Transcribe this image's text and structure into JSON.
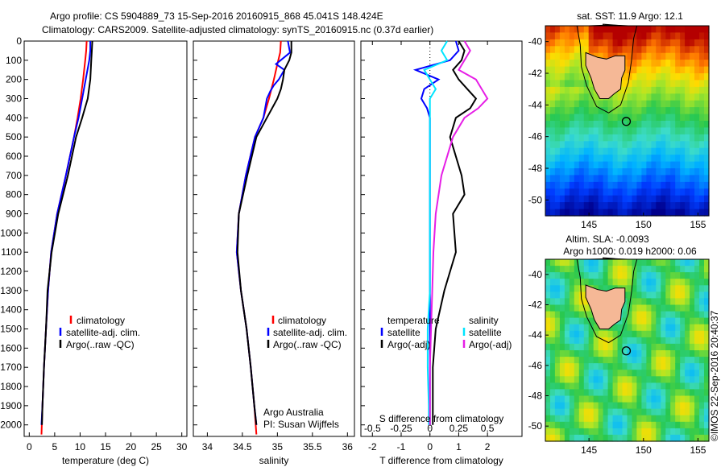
{
  "header": {
    "line1": "Argo profile: CS 5904889_73 15-Sep-2016 20160915_868 45.041S 148.424E",
    "line2": "Climatology: CARS2009. Satellite-adjusted climatology: synTS_20160915.nc (0.37d earlier)"
  },
  "colors": {
    "climatology": "#ff0000",
    "satellite": "#0000ff",
    "argo": "#000000",
    "sat_salinity": "#00e5ff",
    "argo_salinity": "#e61ee6"
  },
  "chart_data": [
    {
      "id": "temperature",
      "type": "line",
      "xlabel": "temperature (deg C)",
      "ylabel": "",
      "xlim": [
        -1,
        31
      ],
      "ylim": [
        2060,
        0
      ],
      "xticks": [
        0,
        5,
        10,
        15,
        20,
        25,
        30
      ],
      "yticks": [
        0,
        100,
        200,
        300,
        400,
        500,
        600,
        700,
        800,
        900,
        1000,
        1100,
        1200,
        1300,
        1400,
        1500,
        1600,
        1700,
        1800,
        1900,
        2000
      ],
      "legend": [
        "climatology",
        "satellite-adj. clim.",
        "Argo(..raw -QC)"
      ],
      "series": [
        {
          "name": "climatology",
          "depth": [
            0,
            50,
            100,
            200,
            300,
            400,
            500,
            700,
            900,
            1100,
            1300,
            1500,
            1700,
            1900,
            2050
          ],
          "values": [
            11.3,
            11.2,
            11.0,
            10.6,
            10.1,
            9.5,
            8.8,
            7.2,
            5.5,
            4.3,
            3.7,
            3.3,
            2.9,
            2.6,
            2.4
          ]
        },
        {
          "name": "satellite-adj. clim.",
          "depth": [
            0,
            50,
            100,
            200,
            300,
            400,
            500,
            700,
            900,
            1100,
            1300,
            1500,
            1700,
            1900,
            2000
          ],
          "values": [
            12.0,
            12.0,
            11.8,
            11.1,
            10.4,
            9.7,
            8.8,
            7.2,
            5.5,
            4.3,
            3.7,
            3.3,
            2.9,
            2.6,
            2.4
          ]
        },
        {
          "name": "Argo(..raw -QC)",
          "depth": [
            0,
            50,
            100,
            200,
            300,
            400,
            500,
            700,
            900,
            1100,
            1300,
            1500,
            1700,
            1900,
            2000
          ],
          "values": [
            12.4,
            12.3,
            12.2,
            12.0,
            11.5,
            10.4,
            9.2,
            7.6,
            5.7,
            4.4,
            3.6,
            3.3,
            2.9,
            2.6,
            2.5
          ]
        }
      ]
    },
    {
      "id": "salinity",
      "type": "line",
      "xlabel": "salinity",
      "ylabel": "",
      "xlim": [
        33.8,
        36.1
      ],
      "ylim": [
        2060,
        0
      ],
      "xticks": [
        34,
        34.5,
        35,
        35.5,
        36
      ],
      "legend": [
        "climatology",
        "satellite-adj. clim.",
        "Argo(..raw -QC)"
      ],
      "series": [
        {
          "name": "climatology",
          "depth": [
            0,
            60,
            120,
            200,
            300,
            400,
            500,
            700,
            900,
            1100,
            1300,
            1500,
            1700,
            1900,
            2050
          ],
          "values": [
            35.05,
            35.04,
            35.0,
            34.95,
            34.88,
            34.8,
            34.68,
            34.55,
            34.45,
            34.42,
            34.48,
            34.56,
            34.62,
            34.67,
            34.7
          ]
        },
        {
          "name": "satellite-adj. clim.",
          "depth": [
            0,
            60,
            120,
            150,
            200,
            230,
            260,
            300,
            400,
            500,
            700,
            900,
            1100,
            1300,
            1500,
            1700,
            1900,
            2000
          ],
          "values": [
            35.15,
            35.18,
            34.98,
            35.1,
            35.02,
            34.95,
            34.9,
            34.85,
            34.8,
            34.68,
            34.55,
            34.45,
            34.42,
            34.48,
            34.56,
            34.62,
            34.67,
            34.7
          ]
        },
        {
          "name": "Argo(..raw -QC)",
          "depth": [
            0,
            60,
            100,
            150,
            200,
            250,
            300,
            400,
            500,
            700,
            900,
            1100,
            1300,
            1500,
            1700,
            1900,
            2000
          ],
          "values": [
            35.2,
            35.2,
            35.17,
            35.1,
            35.08,
            35.05,
            35.0,
            34.85,
            34.7,
            34.57,
            34.45,
            34.43,
            34.48,
            34.56,
            34.62,
            34.67,
            34.7
          ]
        }
      ]
    },
    {
      "id": "difference",
      "type": "line",
      "xlabel": "T difference from climatology",
      "xlabel_top": "S difference from climatology",
      "xlim": [
        -2.4,
        3.2
      ],
      "ylim": [
        2060,
        0
      ],
      "xticks": [
        -2,
        -1,
        0,
        1,
        2
      ],
      "xticks_top": [
        "-0.5",
        "-0.25",
        "0",
        "0.25",
        "0.5"
      ],
      "legend_titles": [
        "temperature",
        "salinity"
      ],
      "legend": [
        "satellite",
        "Argo(-adj)",
        "satellite",
        "Argo(-adj)"
      ],
      "series": [
        {
          "name": "temperature satellite",
          "depth": [
            0,
            50,
            100,
            150,
            200,
            250,
            300,
            350,
            400,
            500,
            700,
            900,
            1100,
            1300,
            1500,
            1700,
            1900,
            2000
          ],
          "values": [
            0.9,
            1.0,
            0.7,
            -0.5,
            0.3,
            -0.2,
            -0.3,
            -0.1,
            0.0,
            0.0,
            0.0,
            0.0,
            0.0,
            0.0,
            0.0,
            0.0,
            0.0,
            0.0
          ]
        },
        {
          "name": "temperature Argo(-adj)",
          "depth": [
            0,
            50,
            100,
            150,
            200,
            250,
            300,
            350,
            400,
            500,
            700,
            800,
            900,
            1100,
            1300,
            1500,
            1700,
            1900,
            2000
          ],
          "values": [
            1.0,
            1.2,
            1.1,
            0.8,
            1.0,
            1.3,
            1.6,
            1.4,
            0.9,
            0.7,
            1.1,
            1.2,
            0.8,
            0.9,
            0.5,
            0.2,
            0.1,
            0.1,
            0.1
          ]
        },
        {
          "name": "salinity satellite",
          "depth": [
            0,
            50,
            100,
            150,
            200,
            250,
            300,
            400,
            500,
            700,
            900,
            1100,
            1300,
            1500,
            1700,
            1900,
            2000
          ],
          "values": [
            0.15,
            0.1,
            0.15,
            -0.05,
            0.0,
            0.05,
            0.0,
            0.0,
            0.0,
            0.0,
            0.0,
            0.0,
            0.0,
            -0.02,
            -0.02,
            -0.01,
            -0.01
          ]
        },
        {
          "name": "salinity Argo(-adj)",
          "depth": [
            0,
            50,
            100,
            150,
            200,
            250,
            300,
            350,
            400,
            500,
            700,
            900,
            1100,
            1300,
            1500,
            1700,
            1900,
            2000
          ],
          "values": [
            0.3,
            0.35,
            0.3,
            0.25,
            0.4,
            0.45,
            0.5,
            0.42,
            0.3,
            0.2,
            0.1,
            0.05,
            0.03,
            0.02,
            0.01,
            0.0,
            0.0,
            0.0
          ]
        }
      ]
    },
    {
      "id": "sst_map",
      "type": "heatmap",
      "title": "sat. SST: 11.9 Argo: 12.1",
      "xticks": [
        145,
        150,
        155
      ],
      "yticks": [
        -40,
        -42,
        -44,
        -46,
        -48,
        -50
      ],
      "xlim": [
        141,
        156
      ],
      "ylim": [
        -51,
        -39
      ],
      "argo_position": [
        148.424,
        -45.041
      ]
    },
    {
      "id": "sla_map",
      "type": "heatmap",
      "title": "Altim. SLA: -0.0093",
      "subtitle": "Argo h1000: 0.019 h2000: 0.06",
      "xticks": [
        145,
        150,
        155
      ],
      "yticks": [
        -40,
        -42,
        -44,
        -46,
        -48,
        -50
      ],
      "xlim": [
        141,
        156
      ],
      "ylim": [
        -51,
        -39
      ],
      "argo_position": [
        148.424,
        -45.041
      ]
    }
  ],
  "credit": "©IMOS 22-Sep-2016 20:40:37",
  "annotation": {
    "line1": "Argo Australia",
    "line2": "PI: Susan Wijffels"
  }
}
